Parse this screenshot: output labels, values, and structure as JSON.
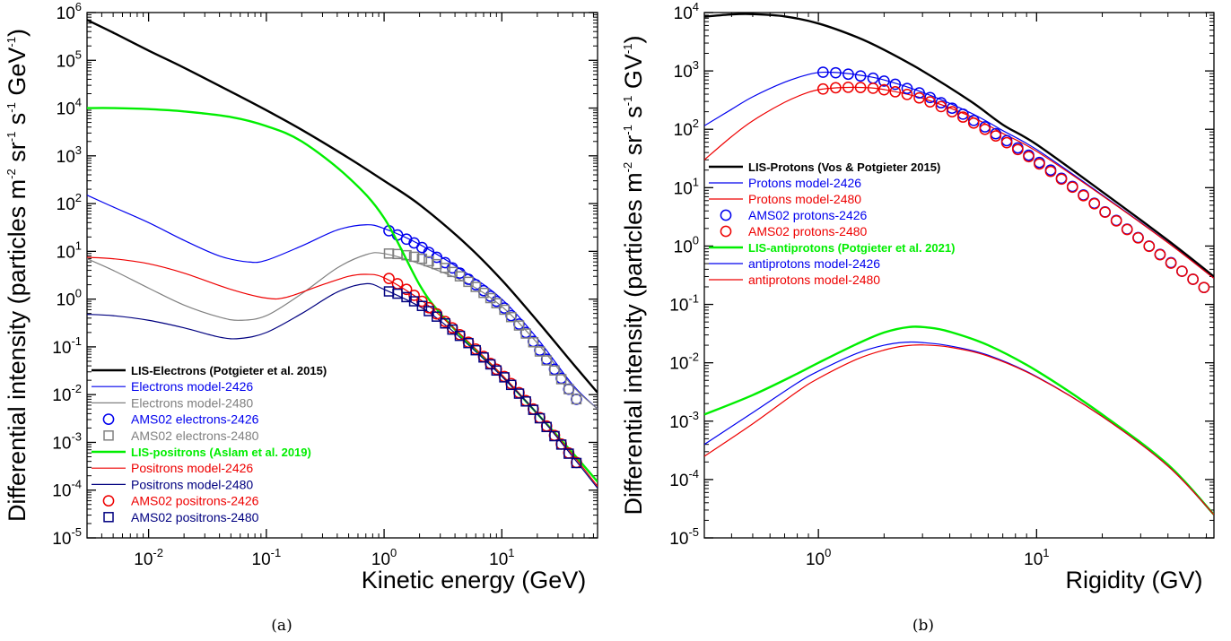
{
  "chart_data": [
    {
      "type": "line",
      "panel_caption": "(a)",
      "xlabel": "Kinetic energy (GeV)",
      "ylabel_parts": [
        "Differential intensity (particles m",
        "-2",
        " sr",
        "-1",
        " s",
        "-1",
        " GeV",
        "-1",
        ")"
      ],
      "xscale": "log",
      "yscale": "log",
      "xlim": [
        0.003,
        65
      ],
      "ylim": [
        1e-05,
        1000000.0
      ],
      "xticks": [
        {
          "v": 0.01,
          "b": "10",
          "e": "-2"
        },
        {
          "v": 0.1,
          "b": "10",
          "e": "-1"
        },
        {
          "v": 1,
          "b": "10",
          "e": "0"
        },
        {
          "v": 10,
          "b": "10",
          "e": "1"
        }
      ],
      "yticks": [
        {
          "v": 1e-05,
          "b": "10",
          "e": "-5"
        },
        {
          "v": 0.0001,
          "b": "10",
          "e": "-4"
        },
        {
          "v": 0.001,
          "b": "10",
          "e": "-3"
        },
        {
          "v": 0.01,
          "b": "10",
          "e": "-2"
        },
        {
          "v": 0.1,
          "b": "10",
          "e": "-1"
        },
        {
          "v": 1,
          "b": "10",
          "e": "0"
        },
        {
          "v": 10,
          "b": "10",
          "e": "1"
        },
        {
          "v": 100,
          "b": "10",
          "e": "2"
        },
        {
          "v": 1000,
          "b": "10",
          "e": "3"
        },
        {
          "v": 10000,
          "b": "10",
          "e": "4"
        },
        {
          "v": 100000,
          "b": "10",
          "e": "5"
        },
        {
          "v": 1000000,
          "b": "10",
          "e": "6"
        }
      ],
      "grid": false,
      "legend_position": "bottom-left",
      "series": [
        {
          "name": "LIS-Electrons (Potgieter et al. 2015)",
          "kind": "line",
          "color": "#000000",
          "width": 2.4,
          "bold": true,
          "x": [
            0.003,
            0.005,
            0.01,
            0.02,
            0.05,
            0.1,
            0.2,
            0.5,
            1,
            2,
            5,
            10,
            20,
            40,
            65
          ],
          "y": [
            700000,
            380000,
            160000,
            70000,
            22000,
            9000,
            3500,
            900,
            300,
            95,
            14,
            2.5,
            0.35,
            0.045,
            0.011
          ]
        },
        {
          "name": "Electrons model-2426",
          "kind": "line",
          "color": "#0000ee",
          "width": 1.2,
          "x": [
            0.003,
            0.005,
            0.01,
            0.02,
            0.04,
            0.07,
            0.1,
            0.2,
            0.4,
            0.7,
            1,
            2,
            5,
            10,
            20,
            40,
            65
          ],
          "y": [
            150,
            85,
            40,
            17,
            8,
            6,
            6.5,
            13,
            28,
            36,
            30,
            14,
            3.5,
            1.0,
            0.15,
            0.016,
            0.005
          ]
        },
        {
          "name": "Electrons model-2480",
          "kind": "line",
          "color": "#808080",
          "width": 1.2,
          "x": [
            0.003,
            0.005,
            0.01,
            0.02,
            0.04,
            0.06,
            0.1,
            0.2,
            0.4,
            0.7,
            1,
            2,
            5,
            10,
            20,
            40,
            65
          ],
          "y": [
            7,
            4,
            1.7,
            0.75,
            0.42,
            0.36,
            0.45,
            1.3,
            4.5,
            8.5,
            9,
            5.5,
            2.2,
            0.7,
            0.12,
            0.015,
            0.005
          ]
        },
        {
          "name": "AMS02 electrons-2426",
          "kind": "marker",
          "marker": "circle",
          "color": "#0000ee",
          "x": [
            1.1,
            1.3,
            1.55,
            1.8,
            2.1,
            2.4,
            2.8,
            3.3,
            3.8,
            4.4,
            5.2,
            6,
            7,
            8,
            9,
            10.5,
            12,
            14,
            16,
            18.5,
            21,
            24,
            28,
            32,
            37,
            43
          ],
          "y": [
            27,
            22,
            18,
            15,
            12,
            9.5,
            7.5,
            5.8,
            4.5,
            3.5,
            2.6,
            2.0,
            1.5,
            1.15,
            0.9,
            0.65,
            0.45,
            0.3,
            0.2,
            0.13,
            0.085,
            0.055,
            0.034,
            0.022,
            0.013,
            0.008
          ]
        },
        {
          "name": "AMS02 electrons-2480",
          "kind": "marker",
          "marker": "square",
          "color": "#808080",
          "x": [
            1.1,
            1.3,
            1.55,
            1.8,
            2.1,
            2.4,
            2.8,
            3.3,
            3.8,
            4.4,
            5.2,
            6,
            7,
            8,
            9,
            10.5,
            12,
            14,
            16,
            18.5,
            21,
            24,
            28,
            32,
            37,
            43
          ],
          "y": [
            9,
            8.8,
            8.3,
            7.7,
            7,
            6.2,
            5.4,
            4.5,
            3.7,
            3.0,
            2.3,
            1.8,
            1.35,
            1.05,
            0.82,
            0.6,
            0.42,
            0.28,
            0.19,
            0.125,
            0.08,
            0.052,
            0.032,
            0.021,
            0.013,
            0.008
          ]
        },
        {
          "name": "LIS-positrons (Aslam et al. 2019)",
          "kind": "line",
          "color": "#00ee00",
          "width": 2.4,
          "bold": true,
          "x": [
            0.003,
            0.005,
            0.01,
            0.02,
            0.05,
            0.1,
            0.2,
            0.5,
            1,
            2,
            3,
            5,
            7,
            10,
            20,
            40,
            65
          ],
          "y": [
            10000,
            10000,
            9500,
            8500,
            6500,
            4200,
            2000,
            350,
            50,
            2.0,
            0.5,
            0.13,
            0.06,
            0.025,
            0.004,
            0.0006,
            0.00015
          ]
        },
        {
          "name": "Positrons model-2426",
          "kind": "line",
          "color": "#ee0000",
          "width": 1.2,
          "x": [
            0.003,
            0.005,
            0.01,
            0.02,
            0.05,
            0.1,
            0.15,
            0.3,
            0.5,
            0.7,
            1,
            2,
            3,
            5,
            10,
            20,
            40,
            65
          ],
          "y": [
            7.5,
            7,
            5.5,
            3.5,
            1.6,
            1.05,
            1.1,
            2.0,
            3.0,
            3.3,
            2.8,
            1.0,
            0.45,
            0.14,
            0.026,
            0.004,
            0.00055,
            0.00012
          ]
        },
        {
          "name": "Positrons model-2480",
          "kind": "line",
          "color": "#000080",
          "width": 1.2,
          "x": [
            0.003,
            0.005,
            0.01,
            0.02,
            0.04,
            0.06,
            0.1,
            0.2,
            0.4,
            0.7,
            1,
            2,
            3,
            5,
            10,
            20,
            40,
            65
          ],
          "y": [
            0.48,
            0.45,
            0.36,
            0.25,
            0.16,
            0.15,
            0.2,
            0.5,
            1.4,
            2.1,
            1.6,
            0.7,
            0.35,
            0.12,
            0.024,
            0.004,
            0.0005,
            0.00011
          ]
        },
        {
          "name": "AMS02 positrons-2426",
          "kind": "marker",
          "marker": "circle",
          "color": "#ee0000",
          "x": [
            1.1,
            1.3,
            1.55,
            1.8,
            2.1,
            2.4,
            2.8,
            3.3,
            3.8,
            4.4,
            5.2,
            6,
            7,
            8,
            9,
            10.5,
            12,
            14,
            16,
            18.5,
            21,
            24,
            28,
            32,
            37,
            43
          ],
          "y": [
            2.7,
            2.1,
            1.6,
            1.2,
            0.9,
            0.66,
            0.49,
            0.34,
            0.25,
            0.18,
            0.125,
            0.09,
            0.063,
            0.045,
            0.034,
            0.024,
            0.017,
            0.011,
            0.0075,
            0.005,
            0.0033,
            0.0022,
            0.0014,
            0.00092,
            0.0006,
            0.00038
          ]
        },
        {
          "name": "AMS02 positrons-2480",
          "kind": "marker",
          "marker": "square",
          "color": "#000080",
          "x": [
            1.1,
            1.3,
            1.55,
            1.8,
            2.1,
            2.4,
            2.8,
            3.3,
            3.8,
            4.4,
            5.2,
            6,
            7,
            8,
            9,
            10.5,
            12,
            14,
            16,
            18.5,
            21,
            24,
            28,
            32,
            37,
            43
          ],
          "y": [
            1.45,
            1.3,
            1.1,
            0.9,
            0.72,
            0.56,
            0.43,
            0.31,
            0.23,
            0.17,
            0.12,
            0.085,
            0.06,
            0.043,
            0.032,
            0.023,
            0.016,
            0.0105,
            0.0072,
            0.0048,
            0.0032,
            0.0021,
            0.00135,
            0.0009,
            0.00058,
            0.00037
          ]
        }
      ]
    },
    {
      "type": "line",
      "panel_caption": "(b)",
      "xlabel": "Rigidity (GV)",
      "ylabel_parts": [
        "Differential intensity (particles m",
        "-2",
        " sr",
        "-1",
        " s",
        "-1",
        " GV",
        "-1",
        ")"
      ],
      "xscale": "log",
      "yscale": "log",
      "xlim": [
        0.3,
        65
      ],
      "ylim": [
        1e-05,
        10000.0
      ],
      "xticks": [
        {
          "v": 1,
          "b": "10",
          "e": "0"
        },
        {
          "v": 10,
          "b": "10",
          "e": "1"
        }
      ],
      "yticks": [
        {
          "v": 1e-05,
          "b": "10",
          "e": "-5"
        },
        {
          "v": 0.0001,
          "b": "10",
          "e": "-4"
        },
        {
          "v": 0.001,
          "b": "10",
          "e": "-3"
        },
        {
          "v": 0.01,
          "b": "10",
          "e": "-2"
        },
        {
          "v": 0.1,
          "b": "10",
          "e": "-1"
        },
        {
          "v": 1,
          "b": "10",
          "e": "0"
        },
        {
          "v": 10,
          "b": "10",
          "e": "1"
        },
        {
          "v": 100,
          "b": "10",
          "e": "2"
        },
        {
          "v": 1000,
          "b": "10",
          "e": "3"
        },
        {
          "v": 10000,
          "b": "10",
          "e": "4"
        }
      ],
      "grid": false,
      "legend_position": "middle-left",
      "series": [
        {
          "name": "LIS-Protons (Vos & Potgieter  2015)",
          "kind": "line",
          "color": "#000000",
          "width": 2.4,
          "bold": true,
          "x": [
            0.3,
            0.4,
            0.5,
            0.7,
            1,
            1.5,
            2,
            3,
            5,
            7,
            10,
            20,
            40,
            65
          ],
          "y": [
            8500,
            9300,
            9400,
            8600,
            6500,
            3800,
            2300,
            1000,
            300,
            120,
            55,
            8.5,
            1.25,
            0.3
          ]
        },
        {
          "name": "Protons model-2426",
          "kind": "line",
          "color": "#0000ee",
          "width": 1.2,
          "x": [
            0.3,
            0.4,
            0.5,
            0.7,
            0.9,
            1.05,
            1.3,
            1.6,
            2,
            3,
            5,
            7,
            10,
            20,
            40,
            65
          ],
          "y": [
            115,
            220,
            360,
            640,
            870,
            950,
            920,
            830,
            700,
            430,
            190,
            95,
            45,
            7.5,
            1.15,
            0.28
          ]
        },
        {
          "name": "Protons model-2480",
          "kind": "line",
          "color": "#ee0000",
          "width": 1.2,
          "x": [
            0.3,
            0.4,
            0.5,
            0.7,
            0.9,
            1.05,
            1.3,
            1.6,
            2,
            3,
            5,
            7,
            10,
            20,
            40,
            65
          ],
          "y": [
            30,
            75,
            140,
            290,
            430,
            490,
            520,
            520,
            480,
            340,
            165,
            85,
            42,
            7.3,
            1.14,
            0.28
          ]
        },
        {
          "name": "AMS02 protons-2426",
          "kind": "marker",
          "marker": "circle",
          "color": "#0000ee",
          "x": [
            1.05,
            1.2,
            1.37,
            1.56,
            1.78,
            2.0,
            2.25,
            2.55,
            2.9,
            3.25,
            3.65,
            4.1,
            4.6,
            5.15,
            5.8,
            6.5,
            7.3,
            8.2,
            9.2,
            10.3,
            11.6,
            13,
            14.6,
            16.4,
            18.4,
            20.6,
            23.2,
            26,
            29.2,
            32.8,
            36.8,
            41.3,
            46.4,
            52.1,
            58.5
          ],
          "y": [
            950,
            930,
            880,
            820,
            750,
            670,
            590,
            500,
            420,
            350,
            285,
            230,
            182,
            142,
            110,
            84,
            64,
            48,
            36,
            27,
            20,
            14.5,
            10.5,
            7.5,
            5.4,
            3.85,
            2.75,
            1.95,
            1.4,
            1.0,
            0.72,
            0.52,
            0.37,
            0.27,
            0.195
          ]
        },
        {
          "name": "AMS02 protons-2480",
          "kind": "marker",
          "marker": "circle",
          "color": "#ee0000",
          "x": [
            1.05,
            1.2,
            1.37,
            1.56,
            1.78,
            2.0,
            2.25,
            2.55,
            2.9,
            3.25,
            3.65,
            4.1,
            4.6,
            5.15,
            5.8,
            6.5,
            7.3,
            8.2,
            9.2,
            10.3,
            11.6,
            13,
            14.6,
            16.4,
            18.4,
            20.6,
            23.2,
            26,
            29.2,
            32.8,
            36.8,
            41.3,
            46.4,
            52.1,
            58.5
          ],
          "y": [
            490,
            515,
            525,
            520,
            505,
            475,
            440,
            395,
            345,
            295,
            245,
            200,
            162,
            128,
            100,
            77,
            59,
            45,
            34,
            25.5,
            19,
            14,
            10.2,
            7.3,
            5.3,
            3.8,
            2.7,
            1.92,
            1.38,
            0.99,
            0.71,
            0.51,
            0.37,
            0.27,
            0.195
          ]
        },
        {
          "name": "LIS-antiprotons (Potgieter et al. 2021)",
          "kind": "line",
          "color": "#00ee00",
          "width": 2.4,
          "bold": true,
          "x": [
            0.3,
            0.5,
            0.8,
            1,
            1.5,
            2,
            2.6,
            3.2,
            4,
            6,
            10,
            20,
            40,
            65
          ],
          "y": [
            0.0013,
            0.0028,
            0.0065,
            0.01,
            0.021,
            0.033,
            0.041,
            0.04,
            0.034,
            0.02,
            0.0073,
            0.0013,
            0.00018,
            2.5e-05
          ]
        },
        {
          "name": "antiprotons model-2426",
          "kind": "line",
          "color": "#0000ee",
          "width": 1.2,
          "x": [
            0.3,
            0.5,
            0.8,
            1,
            1.5,
            2,
            2.5,
            3,
            4,
            6,
            10,
            20,
            40,
            65
          ],
          "y": [
            0.0004,
            0.0014,
            0.0045,
            0.0072,
            0.0145,
            0.02,
            0.0225,
            0.0222,
            0.0195,
            0.0135,
            0.0058,
            0.0012,
            0.00017,
            2.5e-05
          ]
        },
        {
          "name": "antiprotons model-2480",
          "kind": "line",
          "color": "#ee0000",
          "width": 1.2,
          "x": [
            0.3,
            0.5,
            0.8,
            1,
            1.5,
            2,
            2.5,
            3,
            4,
            6,
            10,
            20,
            40,
            65
          ],
          "y": [
            0.00025,
            0.0009,
            0.0032,
            0.0054,
            0.0115,
            0.0165,
            0.0195,
            0.0202,
            0.0185,
            0.013,
            0.0057,
            0.0012,
            0.00017,
            2.5e-05
          ]
        }
      ]
    }
  ]
}
